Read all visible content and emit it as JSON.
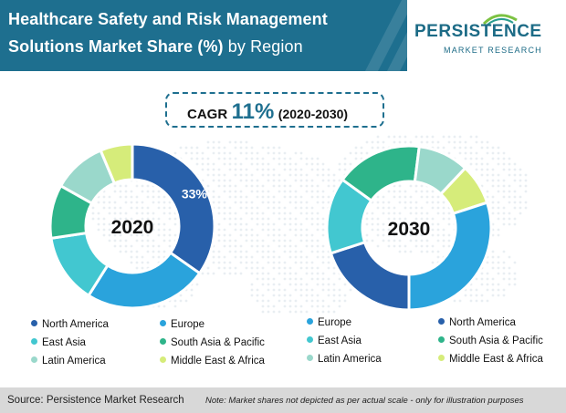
{
  "header": {
    "title_line1": "Healthcare Safety and Risk Management",
    "title_line2": "Solutions Market Share (%)",
    "title_suffix": "by Region"
  },
  "logo": {
    "main": "PERSISTENCE",
    "sub": "MARKET RESEARCH"
  },
  "cagr": {
    "label": "CAGR",
    "value": "11%",
    "period": "(2020-2030)"
  },
  "colors": {
    "North America": "#2860aa",
    "Europe": "#2aa3dc",
    "East Asia": "#42c7d0",
    "South Asia & Pacific": "#2eb48a",
    "Latin America": "#9ad8cb",
    "Middle East & Africa": "#d6ec7a"
  },
  "chart_data": [
    {
      "type": "pie",
      "title": "2020",
      "categories": [
        "North America",
        "Europe",
        "East Asia",
        "South Asia & Pacific",
        "Latin America",
        "Middle East & Africa"
      ],
      "values": [
        33,
        23,
        13,
        10,
        10,
        6
      ],
      "data_labels": [
        "33%"
      ],
      "legend": {
        "placement": "below",
        "entries": [
          "North America",
          "Europe",
          "East Asia",
          "South Asia  & Pacific",
          "Latin America",
          "Middle East & Africa"
        ]
      }
    },
    {
      "type": "pie",
      "title": "2030",
      "categories": [
        "North America",
        "East Asia",
        "South Asia & Pacific",
        "Latin America",
        "Middle East & Africa",
        "Europe"
      ],
      "values": [
        20,
        15,
        17,
        10,
        8,
        30
      ],
      "legend": {
        "placement": "below",
        "entries": [
          "Europe",
          "North America",
          "East Asia",
          "South Asia  & Pacific",
          "Latin America",
          "Middle East & Africa"
        ]
      }
    }
  ],
  "footer": {
    "source": "Source: Persistence Market Research",
    "note": "Note: Market shares not depicted as per actual scale - only for illustration purposes"
  }
}
